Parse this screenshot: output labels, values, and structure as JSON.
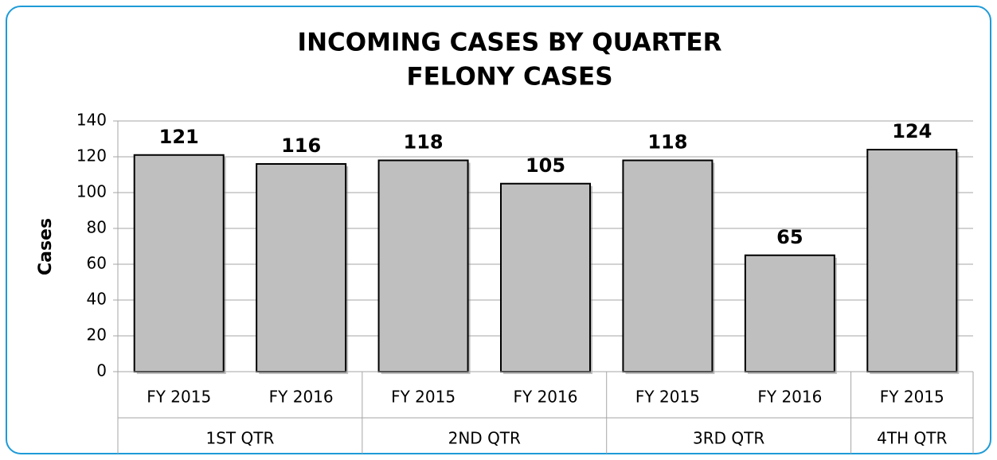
{
  "chart_data": {
    "type": "bar",
    "title": "INCOMING CASES BY QUARTER",
    "subtitle": "FELONY CASES",
    "y_label": "Cases",
    "color": "#bfbfbf",
    "groups": [
      {
        "name": "1ST QTR",
        "categories": [
          "FY 2015",
          "FY 2016"
        ],
        "values": [
          121,
          116
        ]
      },
      {
        "name": "2ND QTR",
        "categories": [
          "FY 2015",
          "FY 2016"
        ],
        "values": [
          118,
          105
        ]
      },
      {
        "name": "3RD QTR",
        "categories": [
          "FY 2015",
          "FY 2016"
        ],
        "values": [
          118,
          65
        ]
      },
      {
        "name": "4TH QTR",
        "categories": [
          "FY 2015"
        ],
        "values": [
          124
        ]
      }
    ],
    "ylim": [
      0,
      140
    ],
    "yticks": [
      0,
      20,
      40,
      60,
      80,
      100,
      120,
      140
    ],
    "grid": true
  }
}
